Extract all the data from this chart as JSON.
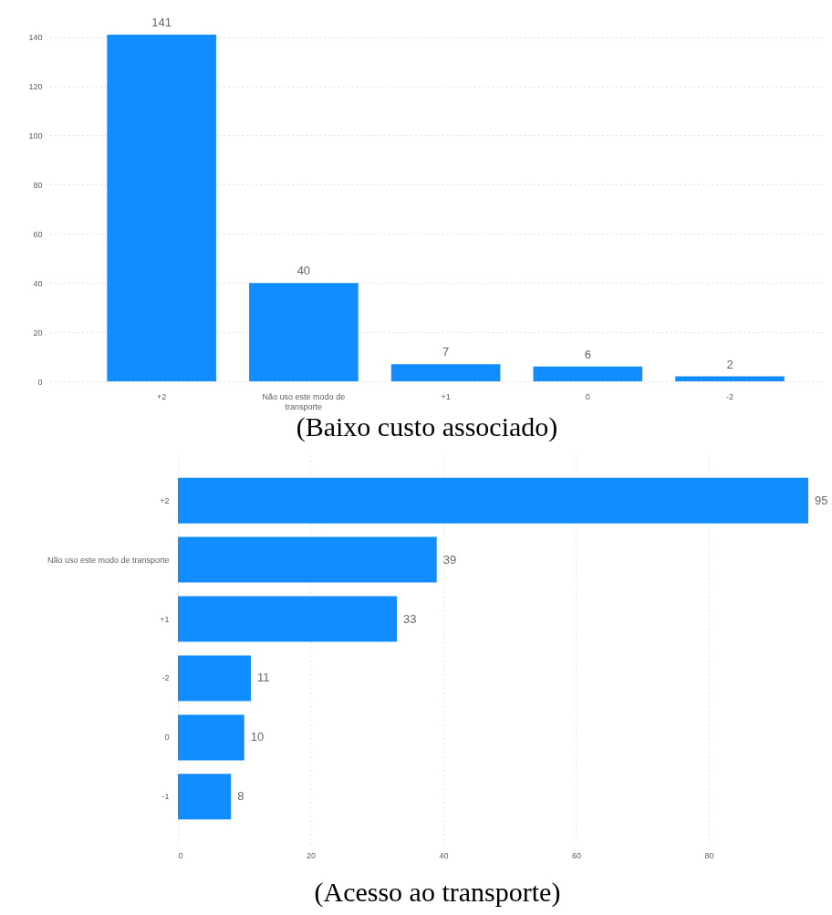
{
  "chart_data": [
    {
      "type": "bar",
      "title": "(Baixo custo associado)",
      "categories": [
        "+2",
        "Não uso este modo de transporte",
        "+1",
        "0",
        "-2"
      ],
      "values": [
        141,
        40,
        7,
        6,
        2
      ],
      "color": "#118dff",
      "ylim": [
        0,
        141
      ],
      "yticks": [
        0,
        20,
        40,
        60,
        80,
        100,
        120,
        140
      ],
      "grid": "y",
      "data_labels": true
    },
    {
      "type": "bar",
      "orientation": "horizontal",
      "title": "(Acesso ao transporte)",
      "categories": [
        "+2",
        "Não uso este modo de transporte",
        "+1",
        "-2",
        "0",
        "-1"
      ],
      "values": [
        95,
        39,
        33,
        11,
        10,
        8
      ],
      "color": "#118dff",
      "xlim": [
        0,
        95
      ],
      "xticks": [
        0,
        20,
        40,
        60,
        80
      ],
      "grid": "x",
      "data_labels": true
    }
  ]
}
